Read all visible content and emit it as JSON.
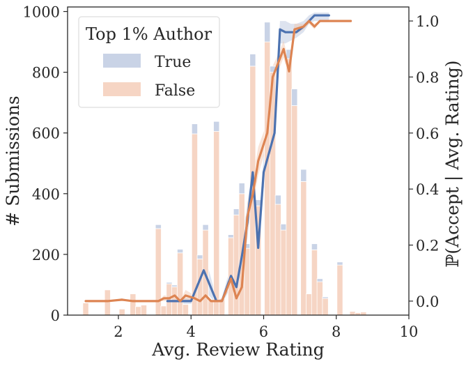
{
  "chart_data": {
    "type": "bar+line",
    "xlabel": "Avg. Review Rating",
    "ylabel_left": "# Submissions",
    "ylabel_right": "ℙ(Accept | Avg. Rating)",
    "xlim": [
      0.6,
      10
    ],
    "ylim_left": [
      0,
      1015
    ],
    "ylim_right": [
      -0.05,
      1.05
    ],
    "x_ticks": [
      2,
      4,
      6,
      8,
      10
    ],
    "y_ticks_left": [
      0,
      200,
      400,
      600,
      800,
      1000
    ],
    "y_ticks_right": [
      0.0,
      0.2,
      0.4,
      0.6,
      0.8,
      1.0
    ],
    "x_tick_labels": [
      "2",
      "4",
      "6",
      "8",
      "10"
    ],
    "y_tick_labels_left": [
      "0",
      "200",
      "400",
      "600",
      "800",
      "1000"
    ],
    "y_tick_labels_right": [
      "0.0",
      "0.2",
      "0.4",
      "0.6",
      "0.8",
      "1.0"
    ],
    "legend": {
      "title": "Top 1% Author",
      "placement": "top-left",
      "entries": [
        {
          "label": "True",
          "color": "#c9d3e6"
        },
        {
          "label": "False",
          "color": "#f6d5c4"
        }
      ]
    },
    "colors": {
      "true_bar": "#c9d3e6",
      "false_bar": "#f6d5c4",
      "true_line": "#4c72b0",
      "false_line": "#dd8452",
      "true_band": "#b3c2dc",
      "false_band": "#f2c4a8"
    },
    "bar_width": 0.16,
    "bars": [
      {
        "x": 1.1,
        "false": 40,
        "true": 0
      },
      {
        "x": 1.7,
        "false": 83,
        "true": 0
      },
      {
        "x": 2.1,
        "false": 20,
        "true": 0
      },
      {
        "x": 2.4,
        "false": 70,
        "true": 0
      },
      {
        "x": 2.55,
        "false": 28,
        "true": 0
      },
      {
        "x": 2.7,
        "false": 33,
        "true": 0
      },
      {
        "x": 3.1,
        "false": 285,
        "true": 13
      },
      {
        "x": 3.25,
        "false": 30,
        "true": 0
      },
      {
        "x": 3.4,
        "false": 103,
        "true": 5
      },
      {
        "x": 3.55,
        "false": 93,
        "true": 6
      },
      {
        "x": 3.7,
        "false": 205,
        "true": 12
      },
      {
        "x": 3.85,
        "false": 35,
        "true": 0
      },
      {
        "x": 4.1,
        "false": 597,
        "true": 33
      },
      {
        "x": 4.25,
        "false": 185,
        "true": 13
      },
      {
        "x": 4.4,
        "false": 280,
        "true": 18
      },
      {
        "x": 4.55,
        "false": 50,
        "true": 0
      },
      {
        "x": 4.7,
        "false": 605,
        "true": 33
      },
      {
        "x": 4.85,
        "false": 55,
        "true": 0
      },
      {
        "x": 5.1,
        "false": 255,
        "true": 10
      },
      {
        "x": 5.25,
        "false": 330,
        "true": 20
      },
      {
        "x": 5.4,
        "false": 400,
        "true": 35
      },
      {
        "x": 5.55,
        "false": 220,
        "true": 15
      },
      {
        "x": 5.7,
        "false": 820,
        "true": 40
      },
      {
        "x": 5.85,
        "false": 360,
        "true": 20
      },
      {
        "x": 6.1,
        "false": 900,
        "true": 65
      },
      {
        "x": 6.25,
        "false": 800,
        "true": 20
      },
      {
        "x": 6.4,
        "false": 365,
        "true": 30
      },
      {
        "x": 6.55,
        "false": 280,
        "true": 20
      },
      {
        "x": 6.7,
        "false": 845,
        "true": 30
      },
      {
        "x": 6.85,
        "false": 690,
        "true": 55
      },
      {
        "x": 7.1,
        "false": 440,
        "true": 40
      },
      {
        "x": 7.25,
        "false": 70,
        "true": 0
      },
      {
        "x": 7.4,
        "false": 215,
        "true": 20
      },
      {
        "x": 7.55,
        "false": 110,
        "true": 10
      },
      {
        "x": 7.7,
        "false": 55,
        "true": 5
      },
      {
        "x": 8.1,
        "false": 165,
        "true": 10
      },
      {
        "x": 8.45,
        "false": 12,
        "true": 0
      },
      {
        "x": 8.6,
        "false": 8,
        "true": 0
      },
      {
        "x": 8.75,
        "false": 10,
        "true": 0
      }
    ],
    "series": [
      {
        "name": "True",
        "x": [
          3.35,
          3.7,
          4.0,
          4.35,
          4.7,
          4.85,
          5.1,
          5.25,
          5.4,
          5.55,
          5.7,
          5.85,
          6.0,
          6.15,
          6.3,
          6.45,
          6.6,
          6.75,
          6.9,
          7.1,
          7.25,
          7.4,
          7.6,
          7.8
        ],
        "y": [
          0.0,
          0.0,
          0.0,
          0.11,
          0.0,
          0.0,
          0.09,
          0.05,
          0.16,
          0.28,
          0.46,
          0.19,
          0.46,
          0.53,
          0.6,
          0.97,
          0.96,
          0.96,
          0.96,
          0.98,
          1.0,
          1.02,
          1.02,
          1.02
        ],
        "band_low": [
          -0.01,
          -0.01,
          -0.01,
          0.04,
          -0.01,
          -0.01,
          0.05,
          0.02,
          0.1,
          0.22,
          0.4,
          0.14,
          0.4,
          0.47,
          0.54,
          0.92,
          0.92,
          0.93,
          0.94,
          0.96,
          0.99,
          1.0,
          1.0,
          1.0
        ],
        "band_high": [
          0.01,
          0.01,
          0.01,
          0.18,
          0.01,
          0.01,
          0.13,
          0.08,
          0.22,
          0.34,
          0.52,
          0.24,
          0.52,
          0.59,
          0.66,
          1.0,
          1.0,
          0.99,
          0.99,
          1.0,
          1.02,
          1.03,
          1.03,
          1.03
        ]
      },
      {
        "name": "False",
        "x": [
          1.1,
          1.7,
          2.1,
          2.4,
          2.7,
          3.1,
          3.25,
          3.4,
          3.55,
          3.7,
          3.85,
          4.1,
          4.25,
          4.4,
          4.55,
          4.7,
          4.85,
          5.1,
          5.25,
          5.4,
          5.55,
          5.7,
          5.85,
          6.1,
          6.25,
          6.4,
          6.55,
          6.7,
          6.85,
          7.1,
          7.25,
          7.4,
          7.55,
          7.7,
          8.1,
          8.4
        ],
        "y": [
          0.0,
          0.0,
          0.005,
          0.0,
          0.0,
          0.0,
          0.01,
          0.01,
          0.02,
          0.0,
          0.02,
          0.01,
          0.0,
          0.02,
          0.0,
          0.0,
          0.0,
          0.08,
          0.01,
          0.05,
          0.3,
          0.38,
          0.5,
          0.6,
          0.8,
          0.85,
          0.9,
          0.82,
          0.97,
          0.98,
          1.0,
          0.98,
          1.0,
          1.0,
          1.0,
          1.0
        ],
        "band_low": [
          0.0,
          0.0,
          0.0,
          0.0,
          0.0,
          0.0,
          0.0,
          0.0,
          0.0,
          0.0,
          0.0,
          0.0,
          0.0,
          0.0,
          0.0,
          0.0,
          0.0,
          0.05,
          0.0,
          0.03,
          0.25,
          0.33,
          0.45,
          0.56,
          0.76,
          0.82,
          0.87,
          0.79,
          0.95,
          0.97,
          0.99,
          0.97,
          1.0,
          1.0,
          1.0,
          1.0
        ],
        "band_high": [
          0.0,
          0.0,
          0.01,
          0.0,
          0.0,
          0.0,
          0.02,
          0.02,
          0.04,
          0.0,
          0.04,
          0.02,
          0.0,
          0.04,
          0.0,
          0.0,
          0.0,
          0.11,
          0.02,
          0.07,
          0.35,
          0.43,
          0.55,
          0.64,
          0.84,
          0.88,
          0.93,
          0.85,
          0.99,
          0.99,
          1.0,
          0.99,
          1.0,
          1.0,
          1.0,
          1.0
        ]
      }
    ]
  }
}
